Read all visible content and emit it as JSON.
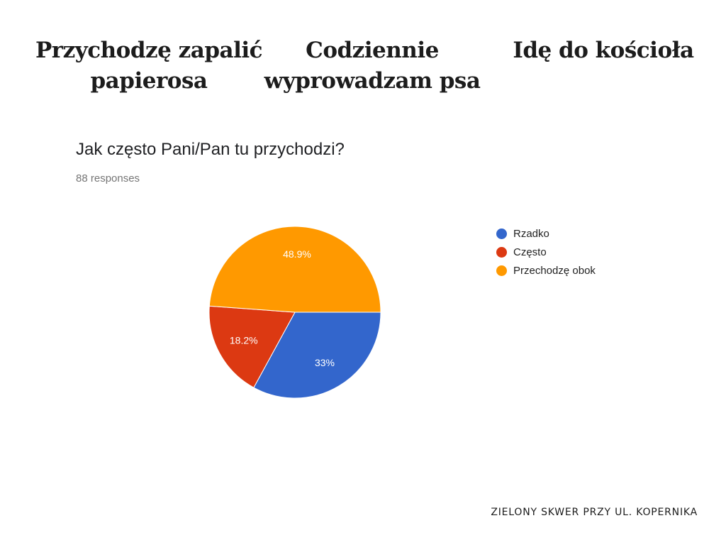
{
  "headings": [
    {
      "lines": [
        "Przychodzę zapalić",
        "papierosa"
      ]
    },
    {
      "lines": [
        "Codziennie",
        "wyprowadzam psa"
      ]
    },
    {
      "lines": [
        "Idę do kościoła"
      ]
    }
  ],
  "chart": {
    "responses": "88 responses"
  },
  "footer": "ZIELONY SKWER PRZY UL. KOPERNIKA",
  "colors": {
    "rzadko": "#3366cc",
    "czesto": "#dc3912",
    "przechodze": "#ff9900"
  },
  "chart_data": {
    "type": "pie",
    "title": "Jak często Pani/Pan tu przychodzi?",
    "legend_position": "right",
    "slices": [
      {
        "label": "Rzadko",
        "value": 33,
        "display": "33%",
        "color": "#3366cc"
      },
      {
        "label": "Często",
        "value": 18.2,
        "display": "18.2%",
        "color": "#dc3912"
      },
      {
        "label": "Przechodzę obok",
        "value": 48.9,
        "display": "48.9%",
        "color": "#ff9900"
      }
    ]
  }
}
